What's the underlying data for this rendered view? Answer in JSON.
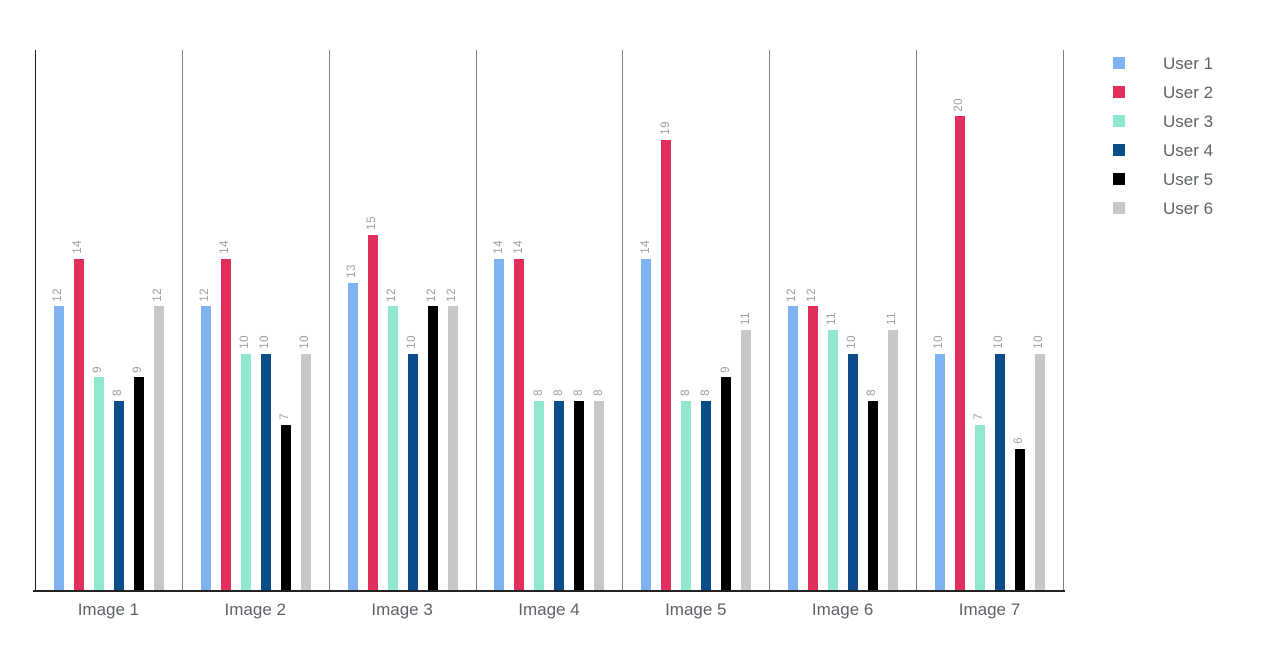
{
  "chart_data": {
    "type": "bar",
    "title": "",
    "xlabel": "",
    "ylabel": "",
    "categories": [
      "Image 1",
      "Image 2",
      "Image 3",
      "Image 4",
      "Image 5",
      "Image 6",
      "Image 7"
    ],
    "series": [
      {
        "name": "User 1",
        "color": "#7FB3F2",
        "values": [
          12,
          12,
          13,
          14,
          14,
          12,
          10
        ]
      },
      {
        "name": "User 2",
        "color": "#E22E5B",
        "values": [
          14,
          14,
          15,
          14,
          19,
          12,
          20
        ]
      },
      {
        "name": "User 3",
        "color": "#90E8D0",
        "values": [
          9,
          10,
          12,
          8,
          8,
          11,
          7
        ]
      },
      {
        "name": "User 4",
        "color": "#0B4D8A",
        "values": [
          8,
          10,
          10,
          8,
          8,
          10,
          10
        ]
      },
      {
        "name": "User 5",
        "color": "#000000",
        "values": [
          9,
          7,
          12,
          8,
          9,
          8,
          6
        ]
      },
      {
        "name": "User 6",
        "color": "#C7C7C7",
        "values": [
          12,
          10,
          12,
          8,
          11,
          11,
          10
        ]
      }
    ],
    "ylim": [
      0,
      22.8
    ],
    "grid": false,
    "bar_value_labels": true,
    "bar_value_label_rotation": -90,
    "legend_position": "right",
    "facets": true
  }
}
